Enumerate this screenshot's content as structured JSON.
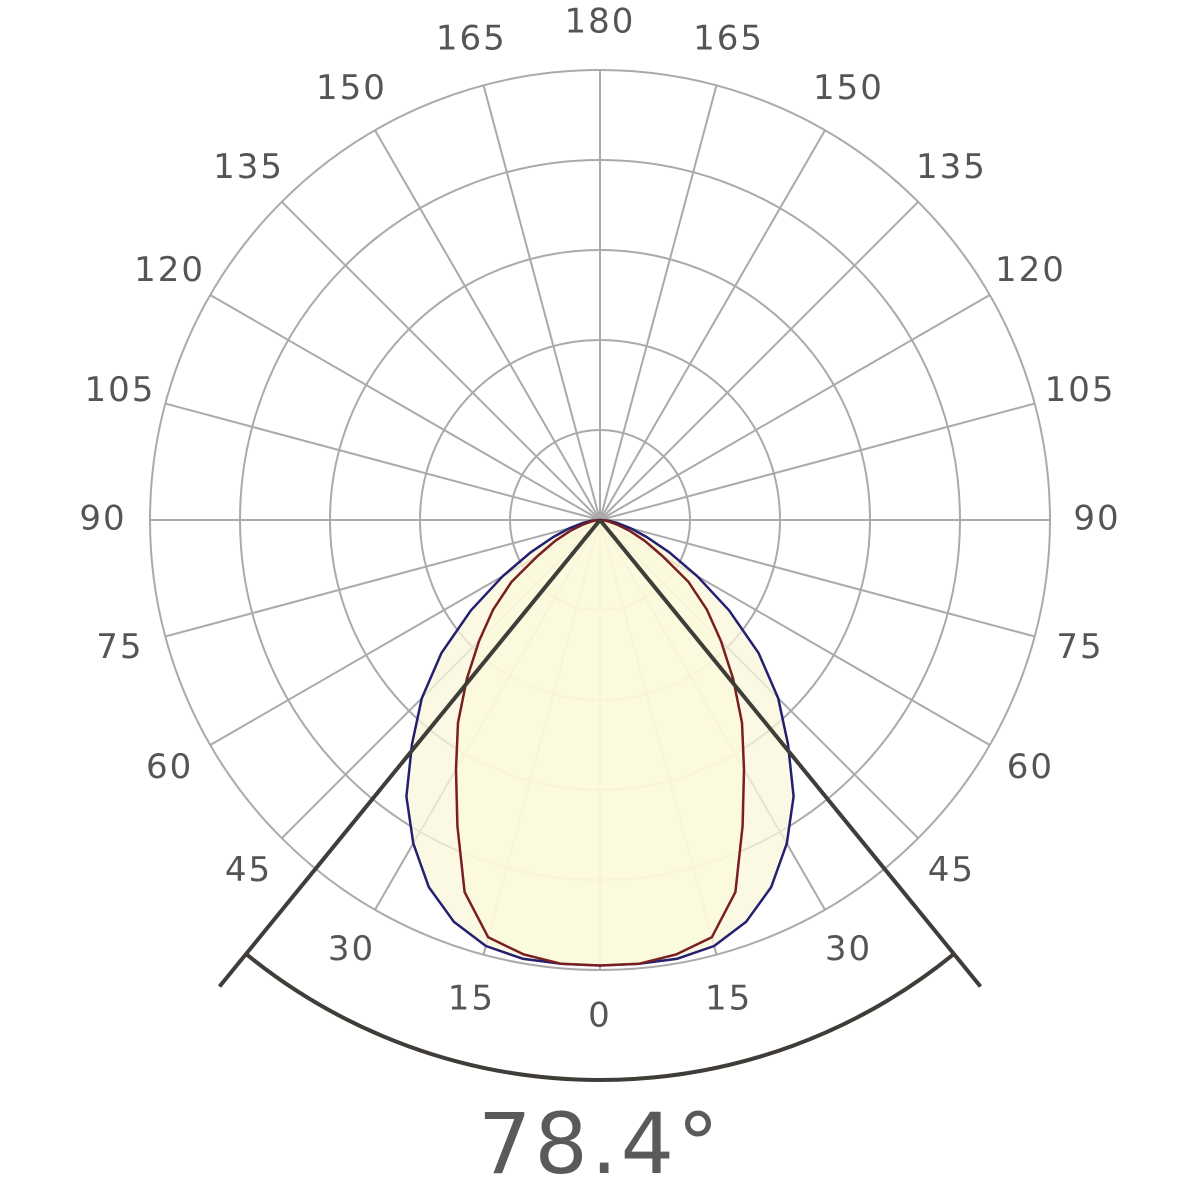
{
  "chart_data": {
    "type": "polar",
    "angle_ticks": [
      0,
      15,
      30,
      45,
      60,
      75,
      90,
      105,
      120,
      135,
      150,
      165,
      180
    ],
    "rlim": [
      0,
      100
    ],
    "rticks": [
      20,
      40,
      60,
      80,
      100
    ],
    "grid": true,
    "angles": [
      -90,
      -85,
      -80,
      -75,
      -70,
      -65,
      -60,
      -55,
      -50,
      -45,
      -40,
      -35,
      -30,
      -25,
      -20,
      -15,
      -10,
      -5,
      0,
      5,
      10,
      15,
      20,
      25,
      30,
      35,
      40,
      45,
      50,
      55,
      60,
      65,
      70,
      75,
      80,
      85,
      90
    ],
    "series": [
      {
        "color": "#232070",
        "fill": "#faf7da",
        "values": [
          0,
          2,
          4,
          7,
          11,
          17,
          25,
          35,
          46,
          56,
          65,
          75,
          83,
          90,
          95,
          98,
          99,
          99,
          99,
          99,
          99,
          98,
          95,
          90,
          83,
          75,
          65,
          56,
          46,
          35,
          25,
          17,
          11,
          7,
          4,
          2,
          0
        ]
      },
      {
        "color": "#7a1e22",
        "fill": "#fcf9dc",
        "values": [
          0,
          1,
          2,
          4,
          7,
          11,
          16,
          24,
          31,
          38,
          46,
          55,
          64,
          75,
          88,
          96,
          98,
          99,
          99,
          99,
          98,
          96,
          88,
          75,
          64,
          55,
          46,
          38,
          31,
          24,
          16,
          11,
          7,
          4,
          2,
          1,
          0
        ]
      }
    ],
    "beam_angle": {
      "value": 78.4,
      "label": "78.4°"
    }
  }
}
